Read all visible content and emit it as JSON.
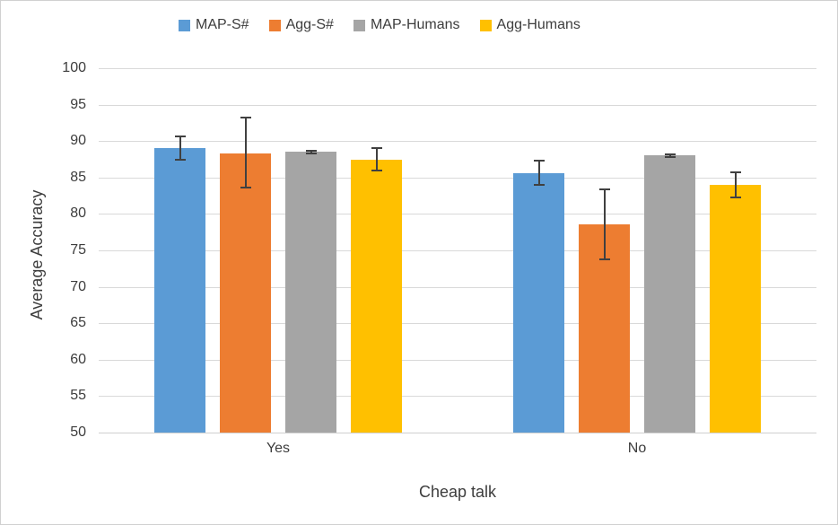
{
  "colors": {
    "text": "#3d3d3d",
    "gridline": "#d9d9d9",
    "axis_line": "#cfcfcf",
    "error_bar": "#404040",
    "background": "#ffffff",
    "frame_border": "#d0d0d0"
  },
  "chart_data": {
    "type": "bar",
    "title": "",
    "xlabel": "Cheap talk",
    "ylabel": "Average Accuracy",
    "categories": [
      "Yes",
      "No"
    ],
    "ylim": [
      50,
      100
    ],
    "ytick_step": 5,
    "ytick_labels": [
      "50",
      "55",
      "60",
      "65",
      "70",
      "75",
      "80",
      "85",
      "90",
      "95",
      "100"
    ],
    "grid": true,
    "legend_position": "top",
    "error_bars": true,
    "series": [
      {
        "name": "MAP-S#",
        "color": "#5B9BD5",
        "values": [
          89.0,
          85.6
        ],
        "error_low": [
          87.3,
          83.9
        ],
        "error_high": [
          90.8,
          87.4
        ]
      },
      {
        "name": "Agg-S#",
        "color": "#ED7D31",
        "values": [
          88.3,
          78.6
        ],
        "error_low": [
          83.5,
          73.7
        ],
        "error_high": [
          93.3,
          83.5
        ]
      },
      {
        "name": "MAP-Humans",
        "color": "#A5A5A5",
        "values": [
          88.5,
          88.0
        ],
        "error_low": [
          88.2,
          87.7
        ],
        "error_high": [
          88.8,
          88.3
        ]
      },
      {
        "name": "Agg-Humans",
        "color": "#FFC000",
        "values": [
          87.5,
          84.0
        ],
        "error_low": [
          85.8,
          82.2
        ],
        "error_high": [
          89.2,
          85.9
        ]
      }
    ]
  }
}
